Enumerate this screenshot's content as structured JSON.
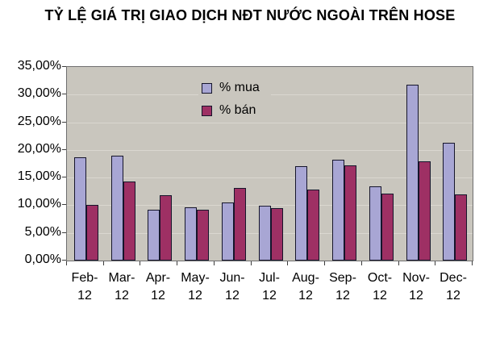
{
  "colors": {
    "page_bg": "#ffffff",
    "plot_bg": "#c9c6be",
    "gridline": "#dad7d0",
    "plot_border": "#6f6f6f",
    "bar_border": "#15152b",
    "tick": "#3c3c3c",
    "text": "#000000",
    "mua_fill": "#a8a6d4",
    "ban_fill": "#9e3064"
  },
  "chart_data": {
    "type": "bar",
    "title": "TỶ LỆ GIÁ TRỊ GIAO DỊCH NĐT NƯỚC NGOÀI TRÊN HOSE",
    "categories": [
      "Feb-12",
      "Mar-12",
      "Apr-12",
      "May-12",
      "Jun-12",
      "Jul-12",
      "Aug-12",
      "Sep-12",
      "Oct-12",
      "Nov-12",
      "Dec-12"
    ],
    "x_tick_second_line": "12",
    "series": [
      {
        "name": "% mua",
        "color": "#a8a6d4",
        "values": [
          18.6,
          18.9,
          9.2,
          9.6,
          10.5,
          9.9,
          17.0,
          18.2,
          13.4,
          31.8,
          21.3
        ]
      },
      {
        "name": "% bán",
        "color": "#9e3064",
        "values": [
          10.1,
          14.3,
          11.8,
          9.2,
          13.2,
          9.5,
          12.9,
          17.2,
          12.1,
          18.0,
          11.9
        ]
      }
    ],
    "xlabel": "",
    "ylabel": "",
    "ylim": [
      0,
      35
    ],
    "ytick_step": 5,
    "ytick_labels_top_to_bottom": [
      "35,00%",
      "30,00%",
      "25,00%",
      "20,00%",
      "15,00%",
      "10,00%",
      "5,00%",
      "0,00%"
    ],
    "grid": true,
    "legend_position": "top-center-inside"
  }
}
